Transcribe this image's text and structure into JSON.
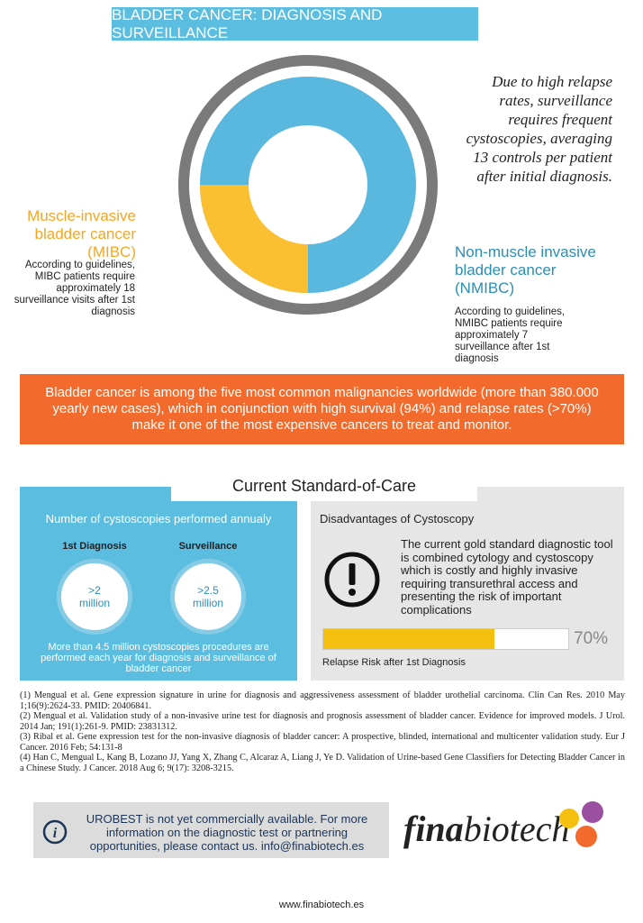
{
  "header": {
    "title": "BLADDER CANCER: DIAGNOSIS AND SURVEILLANCE"
  },
  "donut": {
    "note": "Due to high relapse rates, surveillance requires frequent cystoscopies, averaging 13 controls per patient after initial diagnosis.",
    "mibc": {
      "title": "Muscle-invasive bladder cancer (MIBC)",
      "text": "According to guidelines, MIBC patients require approximately 18 surveillance visits after 1st diagnosis"
    },
    "nmibc": {
      "title": "Non-muscle invasive bladder cancer (NMIBC)",
      "text": "According to guidelines, NMIBC patients require approximately 7 surveillance after 1st diagnosis"
    }
  },
  "banner": {
    "text": "Bladder cancer is among the five most common malignancies worldwide (more than 380.000 yearly new cases), which in conjunction with high survival (94%) and relapse rates (>70%) make it one of the most expensive cancers to treat and monitor."
  },
  "standard_of_care": {
    "title": "Current Standard-of-Care",
    "left": {
      "heading": "Number of cystoscopies performed annualy",
      "items": [
        {
          "label": "1st Diagnosis",
          "value": ">2 million"
        },
        {
          "label": "Surveillance",
          "value": ">2.5 million"
        }
      ],
      "footer": "More than 4.5 million cystoscopies procedures are performed each year for diagnosis and surveillance of bladder cancer"
    },
    "right": {
      "heading": "Disadvantages of Cystoscopy",
      "text": "The current gold standard diagnostic tool is combined cytology and cystoscopy which is costly and highly invasive requiring transurethral access and presenting the risk of important complications",
      "risk": {
        "value": 70,
        "value_label": "70%",
        "caption": "Relapse Risk after 1st Diagnosis"
      }
    }
  },
  "references": [
    "(1) Mengual et al. Gene expression signature in urine for diagnosis and aggressiveness assessment of bladder urothelial carcinoma. Clin Can Res. 2010 May 1;16(9):2624-33. PMID: 20406841.",
    "(2) Mengual et al. Validation study of a non-invasive urine test for diagnosis and prognosis assessment of bladder cancer. Evidence for improved models. J Urol. 2014 Jan; 191(1):261-9. PMID: 23831312.",
    "(3) Ribal et al. Gene expression test for the non-invasive diagnosis of bladder cancer: A prospective, blinded, international and multicenter validation study. Eur J Cancer. 2016 Feb; 54:131-8",
    "(4) Han C, Mengual L, Kang B, Lozano JJ, Yang X, Zhang C, Alcaraz A, Liang J, Ye D. Validation of Urine-based Gene Classifiers for Detecting Bladder Cancer in a Chinese Study. J Cancer. 2018 Aug 6; 9(17): 3208-3215."
  ],
  "info": {
    "text": "UROBEST is not yet commercially available. For more information on the diagnostic test or partnering opportunities, please contact us. info@finabiotech.es"
  },
  "logo": {
    "part1": "fina",
    "part2": "biotech"
  },
  "footer": {
    "url": "www.finabiotech.es"
  }
}
